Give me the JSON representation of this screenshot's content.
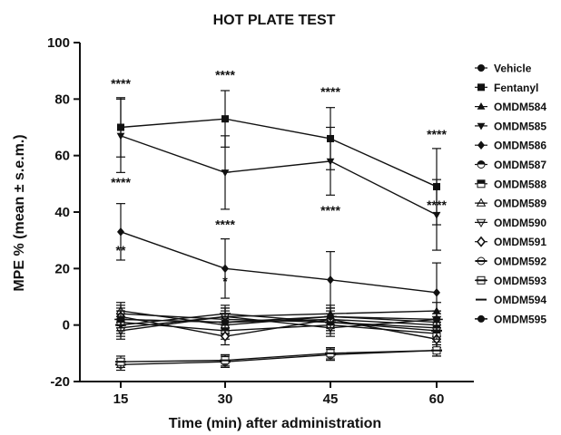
{
  "chart_data": {
    "type": "line",
    "title": "HOT PLATE TEST",
    "xlabel": "Time (min) after administration",
    "ylabel": "MPE % (mean ± s.e.m.)",
    "x": [
      15,
      30,
      45,
      60
    ],
    "x_tick_labels": [
      "15",
      "30",
      "45",
      "60"
    ],
    "ylim": [
      -20,
      100
    ],
    "y_ticks": [
      -20,
      0,
      20,
      40,
      60,
      80,
      100
    ],
    "y_tick_labels": [
      "-20",
      "0",
      "20",
      "40",
      "60",
      "80",
      "100"
    ],
    "grid": false,
    "legend_position": "right",
    "series": [
      {
        "name": "Vehicle",
        "marker": "circle",
        "values": [
          2,
          1,
          2,
          0
        ],
        "errors": [
          2,
          2,
          2,
          2
        ]
      },
      {
        "name": "Fentanyl",
        "marker": "square",
        "values": [
          70,
          73,
          66,
          49
        ],
        "errors": [
          10.5,
          10,
          11,
          13.5
        ]
      },
      {
        "name": "OMDM584",
        "marker": "triangle-up",
        "values": [
          -1,
          3,
          4,
          5
        ],
        "errors": [
          3,
          3,
          3,
          3
        ]
      },
      {
        "name": "OMDM585",
        "marker": "triangle-down",
        "values": [
          67,
          54,
          58,
          39
        ],
        "errors": [
          13,
          13,
          12,
          12.5
        ]
      },
      {
        "name": "OMDM586",
        "marker": "diamond",
        "values": [
          33,
          20,
          16,
          11.5
        ],
        "errors": [
          10,
          10.5,
          10,
          10.5
        ]
      },
      {
        "name": "OMDM587",
        "marker": "circle-half",
        "values": [
          4,
          2,
          1,
          -1
        ],
        "errors": [
          3,
          3,
          3,
          3
        ]
      },
      {
        "name": "OMDM588",
        "marker": "square-half",
        "values": [
          1,
          -2,
          0,
          -3
        ],
        "errors": [
          3,
          3,
          3,
          3
        ]
      },
      {
        "name": "OMDM589",
        "marker": "triangle-half",
        "values": [
          5,
          0,
          3,
          1
        ],
        "errors": [
          3,
          3,
          3,
          3
        ]
      },
      {
        "name": "OMDM590",
        "marker": "triangle-down-half",
        "values": [
          -2,
          3,
          -1,
          2
        ],
        "errors": [
          3,
          3,
          3,
          3
        ]
      },
      {
        "name": "OMDM591",
        "marker": "diamond-open",
        "values": [
          3,
          -4,
          2,
          -5
        ],
        "errors": [
          3,
          3,
          3,
          3
        ]
      },
      {
        "name": "OMDM592",
        "marker": "circle-dash",
        "values": [
          -14,
          -13,
          -10.5,
          -9
        ],
        "errors": [
          2,
          2,
          2,
          2
        ]
      },
      {
        "name": "OMDM593",
        "marker": "square-dash",
        "values": [
          -13,
          -12.5,
          -10,
          -9
        ],
        "errors": [
          2,
          2,
          2,
          2
        ]
      },
      {
        "name": "OMDM594",
        "marker": "dash",
        "values": [
          0,
          4,
          1,
          -2
        ],
        "errors": [
          3,
          3,
          3,
          3
        ]
      },
      {
        "name": "OMDM595",
        "marker": "circle-line",
        "values": [
          2,
          1,
          3,
          2
        ],
        "errors": [
          3,
          3,
          3,
          3
        ]
      }
    ],
    "annotations": [
      {
        "text": "****",
        "x": 15,
        "y": 84
      },
      {
        "text": "****",
        "x": 30,
        "y": 87
      },
      {
        "text": "****",
        "x": 45,
        "y": 81
      },
      {
        "text": "****",
        "x": 60,
        "y": 66
      },
      {
        "text": "****",
        "x": 15,
        "y": 49
      },
      {
        "text": "****",
        "x": 30,
        "y": 34
      },
      {
        "text": "****",
        "x": 45,
        "y": 39
      },
      {
        "text": "****",
        "x": 60,
        "y": 41
      },
      {
        "text": "**",
        "x": 15,
        "y": 25
      },
      {
        "text": "*",
        "x": 30,
        "y": 14
      }
    ]
  }
}
